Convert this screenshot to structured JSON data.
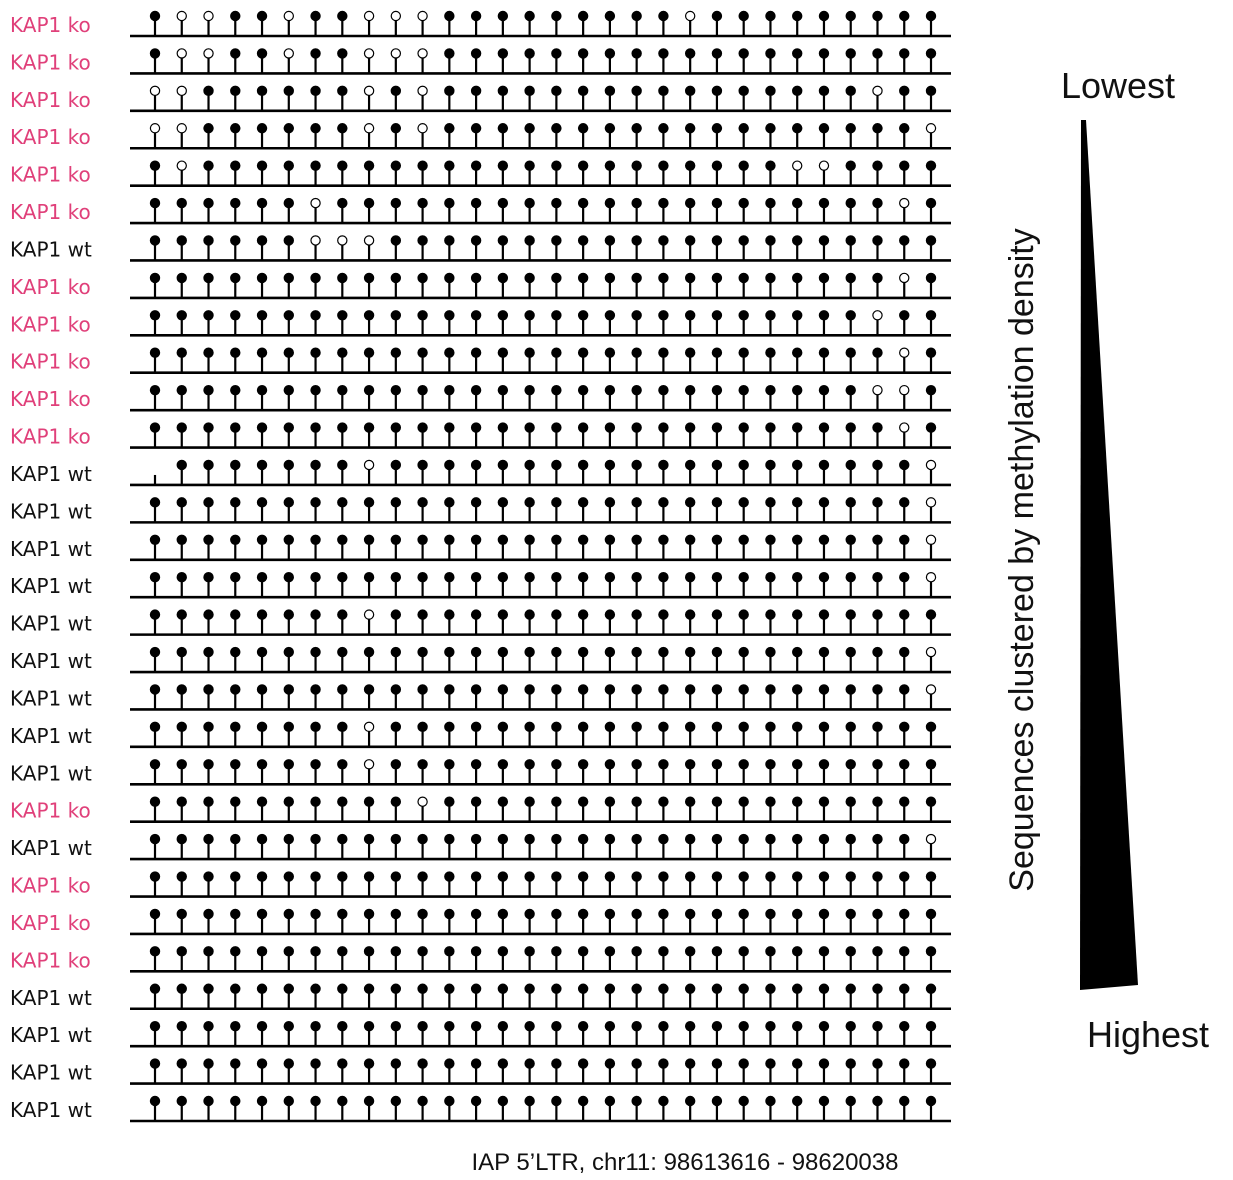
{
  "colors": {
    "ko": "#e0407a",
    "wt": "#111111",
    "line": "#000000",
    "methylated": "#000000",
    "unmethylated": "#ffffff"
  },
  "legend_keys": {
    "ko": "KAP1 ko",
    "wt": "KAP1 wt"
  },
  "sites_per_read": 30,
  "reads": [
    {
      "label": "KAP1 ko",
      "group": "ko",
      "unmethylated": [
        1,
        2,
        5,
        8,
        9,
        10,
        20
      ]
    },
    {
      "label": "KAP1 ko",
      "group": "ko",
      "unmethylated": [
        1,
        2,
        5,
        8,
        9,
        10
      ]
    },
    {
      "label": "KAP1 ko",
      "group": "ko",
      "unmethylated": [
        0,
        1,
        8,
        10,
        27
      ]
    },
    {
      "label": "KAP1 ko",
      "group": "ko",
      "unmethylated": [
        0,
        1,
        8,
        10,
        29
      ]
    },
    {
      "label": "KAP1 ko",
      "group": "ko",
      "unmethylated": [
        1,
        24,
        25
      ]
    },
    {
      "label": "KAP1 ko",
      "group": "ko",
      "unmethylated": [
        6,
        28
      ]
    },
    {
      "label": "KAP1 wt",
      "group": "wt",
      "unmethylated": [
        6,
        7,
        8
      ]
    },
    {
      "label": "KAP1 ko",
      "group": "ko",
      "unmethylated": [
        28
      ]
    },
    {
      "label": "KAP1 ko",
      "group": "ko",
      "unmethylated": [
        27
      ]
    },
    {
      "label": "KAP1 ko",
      "group": "ko",
      "unmethylated": [
        28
      ]
    },
    {
      "label": "KAP1 ko",
      "group": "ko",
      "unmethylated": [
        27,
        28
      ]
    },
    {
      "label": "KAP1 ko",
      "group": "ko",
      "unmethylated": [
        28
      ]
    },
    {
      "label": "KAP1 wt",
      "group": "wt",
      "unmethylated": [
        8,
        29
      ],
      "no_call": [
        0
      ]
    },
    {
      "label": "KAP1 wt",
      "group": "wt",
      "unmethylated": [
        29
      ]
    },
    {
      "label": "KAP1 wt",
      "group": "wt",
      "unmethylated": [
        29
      ]
    },
    {
      "label": "KAP1 wt",
      "group": "wt",
      "unmethylated": [
        29
      ]
    },
    {
      "label": "KAP1 wt",
      "group": "wt",
      "unmethylated": [
        8
      ]
    },
    {
      "label": "KAP1 wt",
      "group": "wt",
      "unmethylated": [
        29
      ]
    },
    {
      "label": "KAP1 wt",
      "group": "wt",
      "unmethylated": [
        29
      ]
    },
    {
      "label": "KAP1 wt",
      "group": "wt",
      "unmethylated": [
        8
      ]
    },
    {
      "label": "KAP1 wt",
      "group": "wt",
      "unmethylated": [
        8
      ]
    },
    {
      "label": "KAP1 ko",
      "group": "ko",
      "unmethylated": [
        10
      ]
    },
    {
      "label": "KAP1 wt",
      "group": "wt",
      "unmethylated": [
        29
      ]
    },
    {
      "label": "KAP1 ko",
      "group": "ko",
      "unmethylated": []
    },
    {
      "label": "KAP1 ko",
      "group": "ko",
      "unmethylated": []
    },
    {
      "label": "KAP1 ko",
      "group": "ko",
      "unmethylated": []
    },
    {
      "label": "KAP1 wt",
      "group": "wt",
      "unmethylated": []
    },
    {
      "label": "KAP1 wt",
      "group": "wt",
      "unmethylated": []
    },
    {
      "label": "KAP1 wt",
      "group": "wt",
      "unmethylated": []
    },
    {
      "label": "KAP1 wt",
      "group": "wt",
      "unmethylated": []
    }
  ],
  "locus_caption": "IAP 5’LTR, chr11: 98613616 - 98620038",
  "side_title": "Sequences clustered by methylation density",
  "scale": {
    "top_label": "Lowest",
    "bottom_label": "Highest"
  }
}
